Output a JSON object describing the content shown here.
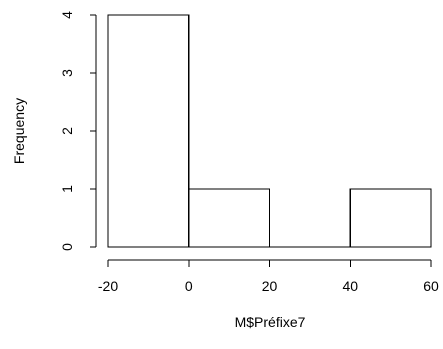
{
  "chart_data": {
    "type": "histogram",
    "title": "",
    "xlabel": "M$Préfixe7",
    "ylabel": "Frequency",
    "bins": [
      {
        "from": -20,
        "to": 0,
        "count": 4
      },
      {
        "from": 0,
        "to": 20,
        "count": 1
      },
      {
        "from": 20,
        "to": 40,
        "count": 0
      },
      {
        "from": 40,
        "to": 60,
        "count": 1
      }
    ],
    "x_ticks": [
      -20,
      0,
      20,
      40,
      60
    ],
    "y_ticks": [
      0,
      1,
      2,
      3,
      4
    ],
    "xlim": [
      -20,
      60
    ],
    "ylim": [
      0,
      4
    ],
    "grid": false,
    "legend": "none",
    "colors": {
      "bar_fill": "#ffffff",
      "bar_stroke": "#000000",
      "axis": "#000000"
    }
  }
}
